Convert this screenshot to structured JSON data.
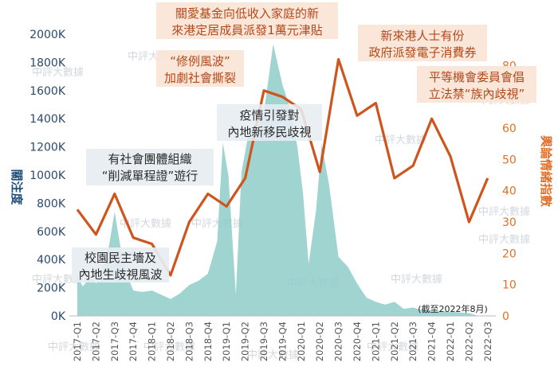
{
  "chart_data": {
    "type": "area+line",
    "categories": [
      "2017-Q1",
      "2017-Q2",
      "2017-Q3",
      "2017-Q4",
      "2018-Q1",
      "2018-Q2",
      "2018-Q3",
      "2018-Q4",
      "2019-Q1",
      "2019-Q2",
      "2019-Q3",
      "2019-Q4",
      "2020-Q1",
      "2020-Q2",
      "2020-Q3",
      "2020-Q4",
      "2021-Q1",
      "2021-Q2",
      "2021-Q3",
      "2021-Q4",
      "2022-Q1",
      "2022-Q2",
      "2022-Q3"
    ],
    "series": [
      {
        "name": "關注度",
        "chart": "area",
        "axis": "left",
        "color": "#8ecdc9",
        "peaks": [
          {
            "x": 0.0,
            "y": 270000
          },
          {
            "x": 0.3,
            "y": 210000
          },
          {
            "x": 0.7,
            "y": 280000
          },
          {
            "x": 1.0,
            "y": 230000
          },
          {
            "x": 1.3,
            "y": 320000
          },
          {
            "x": 1.7,
            "y": 500000
          },
          {
            "x": 2.0,
            "y": 740000
          },
          {
            "x": 2.3,
            "y": 500000
          },
          {
            "x": 2.7,
            "y": 280000
          },
          {
            "x": 3.0,
            "y": 180000
          },
          {
            "x": 3.5,
            "y": 170000
          },
          {
            "x": 4.0,
            "y": 180000
          },
          {
            "x": 4.5,
            "y": 150000
          },
          {
            "x": 5.0,
            "y": 120000
          },
          {
            "x": 5.5,
            "y": 160000
          },
          {
            "x": 6.0,
            "y": 220000
          },
          {
            "x": 6.5,
            "y": 250000
          },
          {
            "x": 7.0,
            "y": 300000
          },
          {
            "x": 7.5,
            "y": 530000
          },
          {
            "x": 7.8,
            "y": 1230000
          },
          {
            "x": 8.1,
            "y": 1000000
          },
          {
            "x": 8.5,
            "y": 150000
          },
          {
            "x": 8.8,
            "y": 1020000
          },
          {
            "x": 9.2,
            "y": 1310000
          },
          {
            "x": 9.6,
            "y": 1300000
          },
          {
            "x": 10.0,
            "y": 1440000
          },
          {
            "x": 10.5,
            "y": 1930000
          },
          {
            "x": 11.0,
            "y": 1640000
          },
          {
            "x": 11.4,
            "y": 1480000
          },
          {
            "x": 11.8,
            "y": 1200000
          },
          {
            "x": 12.1,
            "y": 870000
          },
          {
            "x": 12.4,
            "y": 370000
          },
          {
            "x": 12.8,
            "y": 750000
          },
          {
            "x": 13.1,
            "y": 1220000
          },
          {
            "x": 13.5,
            "y": 930000
          },
          {
            "x": 14.0,
            "y": 420000
          },
          {
            "x": 14.5,
            "y": 350000
          },
          {
            "x": 15.0,
            "y": 230000
          },
          {
            "x": 15.5,
            "y": 130000
          },
          {
            "x": 16.0,
            "y": 100000
          },
          {
            "x": 16.5,
            "y": 80000
          },
          {
            "x": 17.0,
            "y": 100000
          },
          {
            "x": 17.5,
            "y": 50000
          },
          {
            "x": 18.0,
            "y": 60000
          },
          {
            "x": 18.5,
            "y": 40000
          },
          {
            "x": 19.0,
            "y": 40000
          },
          {
            "x": 20.0,
            "y": 30000
          },
          {
            "x": 21.0,
            "y": 20000
          },
          {
            "x": 21.5,
            "y": 0
          }
        ]
      },
      {
        "name": "輿論情緒指數",
        "chart": "line",
        "axis": "right",
        "color": "#d0541d",
        "values": [
          34,
          26,
          39,
          25,
          23,
          13,
          30,
          39,
          35,
          44,
          72,
          70,
          66,
          46,
          82,
          64,
          68,
          44,
          48,
          63,
          51,
          30,
          44
        ]
      }
    ],
    "xlabel": "",
    "ylabel_left": "關注度",
    "ylabel_right": "輿論情緒指數",
    "ylim_left": [
      0,
      2000000
    ],
    "ylim_right": [
      0,
      90
    ],
    "yticks_left": [
      "0K",
      "200K",
      "400K",
      "600K",
      "800K",
      "1000K",
      "1200K",
      "1400K",
      "1600K",
      "1800K",
      "2000K"
    ],
    "yticks_right": [
      "0",
      "10",
      "20",
      "30",
      "40",
      "50",
      "60",
      "70",
      "80"
    ],
    "annotations": [
      {
        "id": "a1",
        "lines": [
          "校園民主墻及",
          "內地生歧視風波"
        ]
      },
      {
        "id": "a2",
        "lines": [
          "有社會團體組織",
          "“削減單程證”遊行"
        ]
      },
      {
        "id": "a3",
        "lines": [
          "“修例風波”",
          "加劇社會撕裂"
        ]
      },
      {
        "id": "a4",
        "lines": [
          "疫情引發對",
          "內地新移民歧視"
        ]
      },
      {
        "id": "a5",
        "lines": [
          "關愛基金向低收入家庭的新",
          "來港定居成員派發1萬元津貼"
        ]
      },
      {
        "id": "a6",
        "lines": [
          "新來港人士有份",
          "政府派發電子消費券"
        ]
      },
      {
        "id": "a7",
        "lines": [
          "平等機會委員會倡",
          "立法禁“族內歧視”"
        ]
      }
    ],
    "note": "(截至2022年8月)",
    "watermark": "中評大數據",
    "grid": false,
    "legend": "none"
  }
}
